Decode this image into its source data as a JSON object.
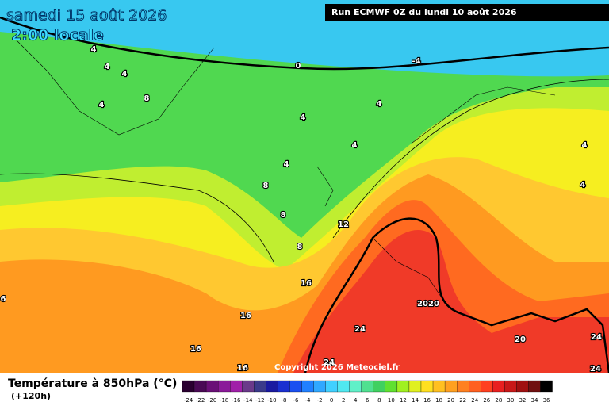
{
  "header": {
    "title": "samedi 15 août 2026",
    "subtitle": "2:00 locale",
    "run": "Run ECMWF 0Z du lundi 10 août 2026"
  },
  "map": {
    "contour_labels": [
      "4",
      "4",
      "4",
      "4",
      "8",
      "0",
      "-4",
      "4",
      "4",
      "4",
      "4",
      "4",
      "4",
      "8",
      "8",
      "8",
      "12",
      "16",
      "16",
      "16",
      "16",
      "20",
      "20",
      "24",
      "20",
      "24",
      "24",
      "24",
      "6"
    ],
    "copyright": "Copyright 2026 Meteociel.fr"
  },
  "legend": {
    "title": "Température à 850hPa (°C)",
    "lead_time": "(+120h)",
    "labels": [
      "-24",
      "-22",
      "-20",
      "-18",
      "-16",
      "-14",
      "-12",
      "-10",
      "-8",
      "-6",
      "-4",
      "-2",
      "0",
      "2",
      "4",
      "6",
      "8",
      "10",
      "12",
      "14",
      "16",
      "18",
      "20",
      "22",
      "24",
      "26",
      "28",
      "30",
      "32",
      "34",
      "36"
    ],
    "colors": [
      "#2a0030",
      "#4a0a55",
      "#6a1077",
      "#8a1a99",
      "#a020a8",
      "#6a3a8a",
      "#3a3a8a",
      "#1a1aa0",
      "#1a30d0",
      "#1a50f0",
      "#2080ff",
      "#30a8ff",
      "#40d0ff",
      "#50e8f0",
      "#60f0c8",
      "#50e090",
      "#40d060",
      "#60e030",
      "#a0f020",
      "#e0f020",
      "#ffe020",
      "#ffc020",
      "#ffa020",
      "#ff8020",
      "#ff6020",
      "#ff4020",
      "#e82020",
      "#c81818",
      "#a01010",
      "#701010",
      "#000000"
    ]
  }
}
